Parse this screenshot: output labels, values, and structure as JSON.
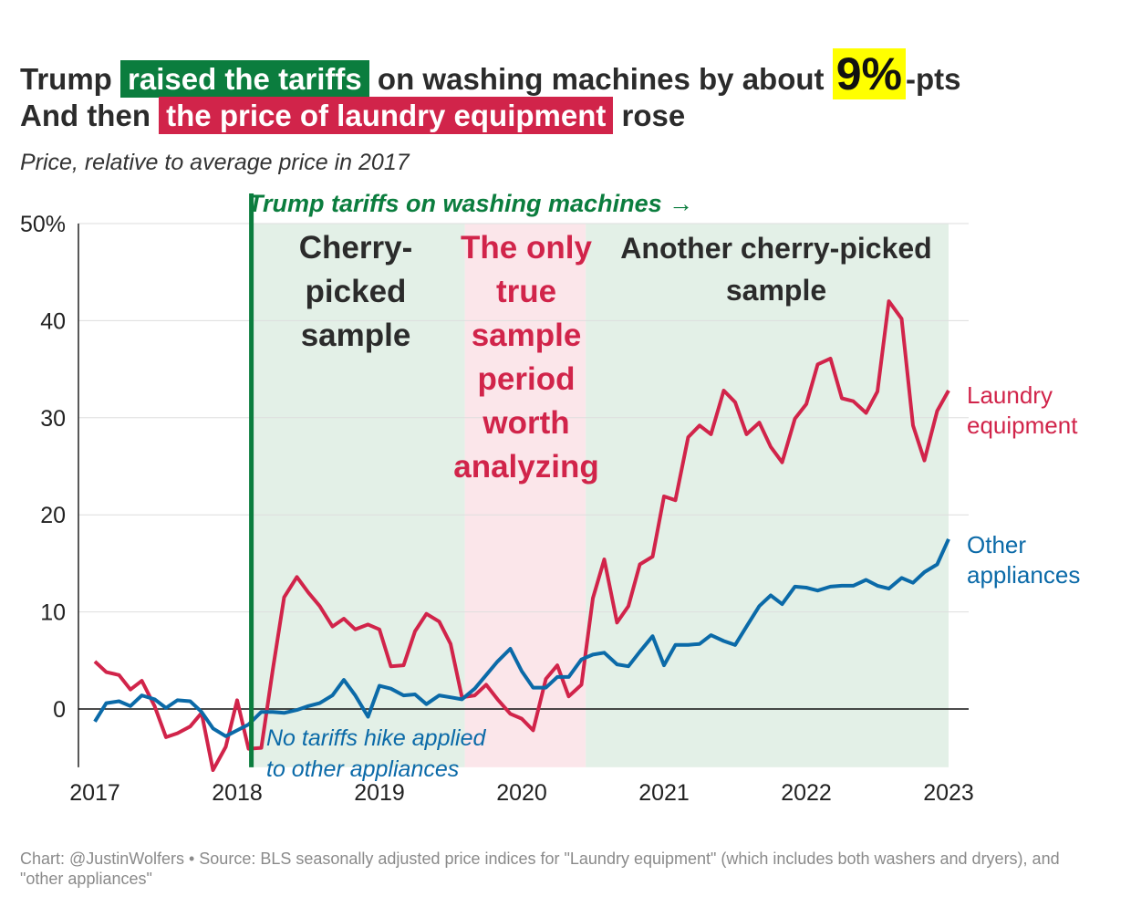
{
  "title": {
    "line1": {
      "pre": "Trump ",
      "highlight": "raised the tariffs",
      "mid": " on washing machines by about ",
      "big": "9%",
      "post": "-pts"
    },
    "line2": {
      "pre": "And then ",
      "highlight": "the price of laundry equipment",
      "post": " rose"
    }
  },
  "subtitle": "Price, relative to average price in 2017",
  "footer": "Chart: @JustinWolfers • Source: BLS seasonally adjusted price indices for \"Laundry equipment\" (which includes both washers and dryers), and \"other appliances\"",
  "colors": {
    "laundry": "#d1244a",
    "other": "#0b6aa8",
    "tariff": "#0b7d3e",
    "green_shade": "#e3f0e7",
    "red_shade": "#fbe6ea",
    "highlight_yellow": "#ffff00"
  },
  "chart_data": {
    "type": "line",
    "x_range": [
      2017,
      2023
    ],
    "ylim": [
      -6,
      50
    ],
    "y_ticks": [
      0,
      10,
      20,
      30,
      40,
      50
    ],
    "y_tick_labels": [
      "0",
      "10",
      "20",
      "30",
      "40",
      "50%"
    ],
    "x_ticks": [
      2017,
      2018,
      2019,
      2020,
      2021,
      2022,
      2023
    ],
    "x_tick_labels": [
      "2017",
      "2018",
      "2019",
      "2020",
      "2021",
      "2022",
      "2023"
    ],
    "grid": true,
    "tariff_line": {
      "x": 2018.1,
      "label": "Trump tariffs on washing machines →"
    },
    "shaded_regions": [
      {
        "from": 2018.1,
        "to": 2019.6,
        "kind": "green",
        "label_lines": [
          "Cherry-",
          "picked",
          "sample"
        ]
      },
      {
        "from": 2019.6,
        "to": 2020.45,
        "kind": "red",
        "label_lines": [
          "The only",
          "true",
          "sample",
          "period",
          "worth",
          "analyzing"
        ]
      },
      {
        "from": 2020.45,
        "to": 2023.0,
        "kind": "green",
        "label_lines": [
          "Another cherry-picked",
          "sample"
        ]
      }
    ],
    "annotation": {
      "lines": [
        "No tariffs hike applied",
        "to other appliances"
      ]
    },
    "series": [
      {
        "name": "Laundry equipment",
        "label_lines": [
          "Laundry",
          "equipment"
        ],
        "color": "#d1244a",
        "points": [
          [
            2017.0,
            4.9
          ],
          [
            2017.08,
            3.8
          ],
          [
            2017.17,
            3.5
          ],
          [
            2017.25,
            2.0
          ],
          [
            2017.33,
            2.9
          ],
          [
            2017.42,
            0.3
          ],
          [
            2017.5,
            -2.9
          ],
          [
            2017.58,
            -2.5
          ],
          [
            2017.67,
            -1.8
          ],
          [
            2017.75,
            -0.4
          ],
          [
            2017.83,
            -6.3
          ],
          [
            2017.92,
            -3.9
          ],
          [
            2018.0,
            0.9
          ],
          [
            2018.08,
            -4.1
          ],
          [
            2018.17,
            -4.0
          ],
          [
            2018.25,
            4.0
          ],
          [
            2018.33,
            11.5
          ],
          [
            2018.42,
            13.6
          ],
          [
            2018.5,
            12.0
          ],
          [
            2018.58,
            10.6
          ],
          [
            2018.67,
            8.5
          ],
          [
            2018.75,
            9.3
          ],
          [
            2018.83,
            8.2
          ],
          [
            2018.92,
            8.7
          ],
          [
            2019.0,
            8.2
          ],
          [
            2019.08,
            4.4
          ],
          [
            2019.17,
            4.5
          ],
          [
            2019.25,
            8.0
          ],
          [
            2019.33,
            9.8
          ],
          [
            2019.42,
            9.0
          ],
          [
            2019.5,
            6.7
          ],
          [
            2019.58,
            1.2
          ],
          [
            2019.67,
            1.4
          ],
          [
            2019.75,
            2.5
          ],
          [
            2019.83,
            1.0
          ],
          [
            2019.92,
            -0.5
          ],
          [
            2020.0,
            -1.0
          ],
          [
            2020.08,
            -2.2
          ],
          [
            2020.17,
            3.1
          ],
          [
            2020.25,
            4.5
          ],
          [
            2020.33,
            1.3
          ],
          [
            2020.42,
            2.5
          ],
          [
            2020.5,
            11.4
          ],
          [
            2020.58,
            15.4
          ],
          [
            2020.67,
            8.9
          ],
          [
            2020.75,
            10.6
          ],
          [
            2020.83,
            14.9
          ],
          [
            2020.92,
            15.7
          ],
          [
            2021.0,
            21.9
          ],
          [
            2021.08,
            21.5
          ],
          [
            2021.17,
            28.0
          ],
          [
            2021.25,
            29.2
          ],
          [
            2021.33,
            28.3
          ],
          [
            2021.42,
            32.8
          ],
          [
            2021.5,
            31.6
          ],
          [
            2021.58,
            28.3
          ],
          [
            2021.67,
            29.5
          ],
          [
            2021.75,
            27.0
          ],
          [
            2021.83,
            25.4
          ],
          [
            2021.92,
            29.9
          ],
          [
            2022.0,
            31.4
          ],
          [
            2022.08,
            35.5
          ],
          [
            2022.17,
            36.1
          ],
          [
            2022.25,
            32.0
          ],
          [
            2022.33,
            31.7
          ],
          [
            2022.42,
            30.5
          ],
          [
            2022.5,
            32.7
          ],
          [
            2022.58,
            42.0
          ],
          [
            2022.67,
            40.2
          ],
          [
            2022.75,
            29.2
          ],
          [
            2022.83,
            25.6
          ],
          [
            2022.92,
            30.7
          ],
          [
            2023.0,
            32.8
          ]
        ]
      },
      {
        "name": "Other appliances",
        "label_lines": [
          "Other",
          "appliances"
        ],
        "color": "#0b6aa8",
        "points": [
          [
            2017.0,
            -1.3
          ],
          [
            2017.08,
            0.6
          ],
          [
            2017.17,
            0.8
          ],
          [
            2017.25,
            0.3
          ],
          [
            2017.33,
            1.4
          ],
          [
            2017.42,
            1.0
          ],
          [
            2017.5,
            0.1
          ],
          [
            2017.58,
            0.9
          ],
          [
            2017.67,
            0.8
          ],
          [
            2017.75,
            -0.3
          ],
          [
            2017.83,
            -2.0
          ],
          [
            2017.92,
            -2.8
          ],
          [
            2018.0,
            -2.2
          ],
          [
            2018.08,
            -1.6
          ],
          [
            2018.17,
            -0.3
          ],
          [
            2018.25,
            -0.3
          ],
          [
            2018.33,
            -0.4
          ],
          [
            2018.42,
            -0.1
          ],
          [
            2018.5,
            0.3
          ],
          [
            2018.58,
            0.6
          ],
          [
            2018.67,
            1.4
          ],
          [
            2018.75,
            3.0
          ],
          [
            2018.83,
            1.4
          ],
          [
            2018.92,
            -0.8
          ],
          [
            2019.0,
            2.4
          ],
          [
            2019.08,
            2.1
          ],
          [
            2019.17,
            1.4
          ],
          [
            2019.25,
            1.5
          ],
          [
            2019.33,
            0.5
          ],
          [
            2019.42,
            1.4
          ],
          [
            2019.5,
            1.2
          ],
          [
            2019.58,
            1.0
          ],
          [
            2019.67,
            2.1
          ],
          [
            2019.75,
            3.5
          ],
          [
            2019.83,
            4.9
          ],
          [
            2019.92,
            6.2
          ],
          [
            2020.0,
            3.9
          ],
          [
            2020.08,
            2.2
          ],
          [
            2020.17,
            2.2
          ],
          [
            2020.25,
            3.3
          ],
          [
            2020.33,
            3.3
          ],
          [
            2020.42,
            5.1
          ],
          [
            2020.5,
            5.6
          ],
          [
            2020.58,
            5.8
          ],
          [
            2020.67,
            4.6
          ],
          [
            2020.75,
            4.4
          ],
          [
            2020.83,
            5.9
          ],
          [
            2020.92,
            7.5
          ],
          [
            2021.0,
            4.5
          ],
          [
            2021.08,
            6.6
          ],
          [
            2021.17,
            6.6
          ],
          [
            2021.25,
            6.7
          ],
          [
            2021.33,
            7.6
          ],
          [
            2021.42,
            7.0
          ],
          [
            2021.5,
            6.6
          ],
          [
            2021.58,
            8.5
          ],
          [
            2021.67,
            10.6
          ],
          [
            2021.75,
            11.7
          ],
          [
            2021.83,
            10.8
          ],
          [
            2021.92,
            12.6
          ],
          [
            2022.0,
            12.5
          ],
          [
            2022.08,
            12.2
          ],
          [
            2022.17,
            12.6
          ],
          [
            2022.25,
            12.7
          ],
          [
            2022.33,
            12.7
          ],
          [
            2022.42,
            13.3
          ],
          [
            2022.5,
            12.7
          ],
          [
            2022.58,
            12.4
          ],
          [
            2022.67,
            13.5
          ],
          [
            2022.75,
            13.0
          ],
          [
            2022.83,
            14.1
          ],
          [
            2022.92,
            14.9
          ],
          [
            2023.0,
            17.5
          ]
        ]
      }
    ]
  }
}
